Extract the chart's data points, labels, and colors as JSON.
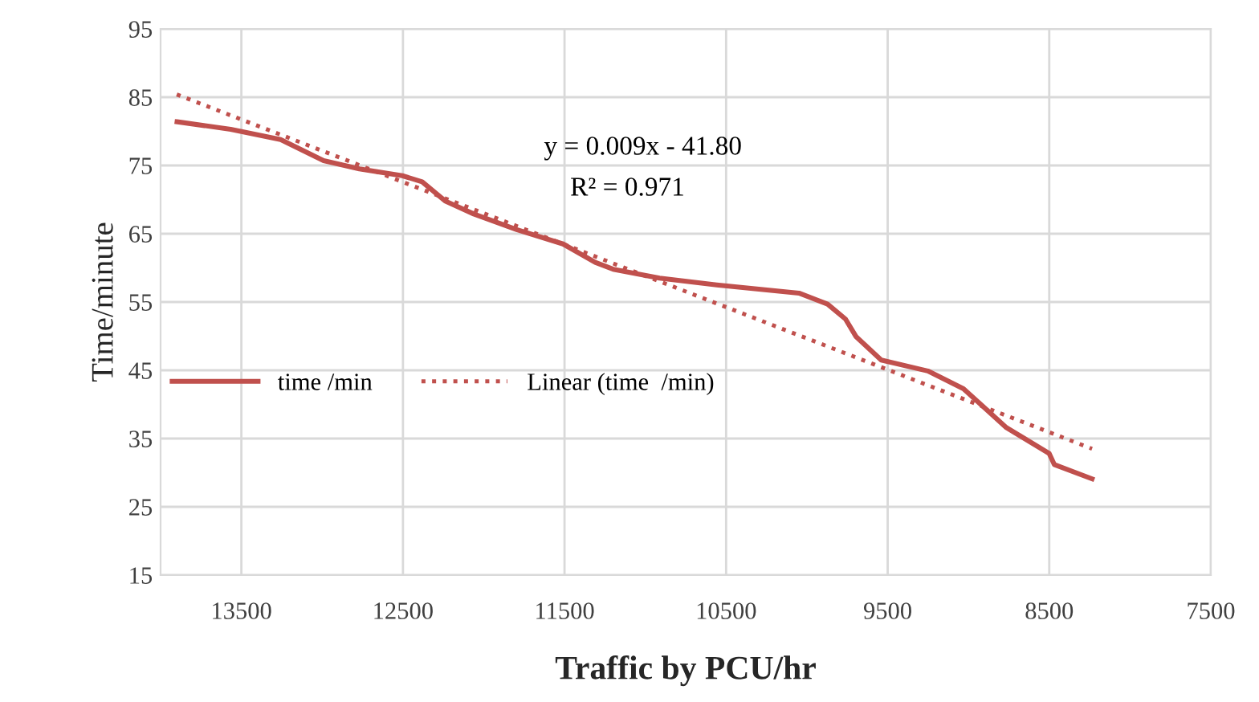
{
  "chart_data": {
    "type": "line",
    "xlabel": "Traffic by PCU/hr",
    "ylabel": "Time/minute",
    "annotations": [
      "y = 0.009x - 41.80",
      "R² = 0.971"
    ],
    "series": [
      {
        "name": "time /min",
        "color": "#c0504d",
        "line_style": "solid",
        "x": [
          13898,
          13566,
          13257,
          12991,
          12770,
          12504,
          12381,
          12239,
          12062,
          11796,
          11509,
          11310,
          11199,
          10912,
          10558,
          10049,
          9872,
          9761,
          9695,
          9540,
          9252,
          9031,
          8765,
          8500,
          8469,
          8235
        ],
        "values": [
          81.4,
          80.3,
          78.8,
          75.7,
          74.5,
          73.5,
          72.6,
          69.8,
          67.9,
          65.6,
          63.5,
          60.8,
          59.8,
          58.5,
          57.5,
          56.3,
          54.7,
          52.5,
          49.9,
          46.5,
          44.9,
          42.3,
          36.6,
          32.8,
          31.2,
          29.1
        ]
      },
      {
        "name": "Linear (time  /min)",
        "color": "#c0504d",
        "line_style": "dotted",
        "x": [
          13900,
          8235
        ],
        "values": [
          85.4,
          33.5
        ]
      }
    ],
    "xlim": [
      14000,
      7500
    ],
    "xticks": [
      13500,
      12500,
      11500,
      10500,
      9500,
      8500,
      7500
    ],
    "ylim": [
      15,
      95
    ],
    "yticks": [
      15,
      25,
      35,
      45,
      55,
      65,
      75,
      85,
      95
    ],
    "grid": true,
    "legend": "left",
    "marker": "none"
  }
}
